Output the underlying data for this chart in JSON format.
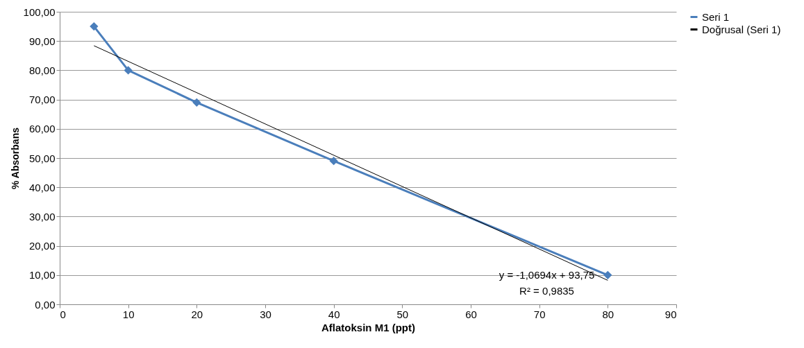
{
  "chart_data": {
    "type": "line",
    "xlabel": "Aflatoksin M1 (ppt)",
    "ylabel": "% Absorbans",
    "series": [
      {
        "name": "Seri 1",
        "color": "#4a7ebb",
        "x": [
          5,
          10,
          20,
          40,
          80
        ],
        "values": [
          95,
          80,
          69,
          49,
          10
        ]
      },
      {
        "name": "Doğrusal (Seri 1)",
        "color": "#000000",
        "type": "line",
        "marker": "none",
        "x": [
          5,
          80
        ],
        "values": [
          88.4,
          8.2
        ]
      }
    ],
    "xlim": [
      0,
      90
    ],
    "xticks": [
      0,
      10,
      20,
      30,
      40,
      50,
      60,
      70,
      80,
      90
    ],
    "ylim": [
      0,
      100
    ],
    "yticks": [
      {
        "value": 0,
        "label": "0,00"
      },
      {
        "value": 10,
        "label": "10,00"
      },
      {
        "value": 20,
        "label": "20,00"
      },
      {
        "value": 30,
        "label": "30,00"
      },
      {
        "value": 40,
        "label": "40,00"
      },
      {
        "value": 50,
        "label": "50,00"
      },
      {
        "value": 60,
        "label": "60,00"
      },
      {
        "value": 70,
        "label": "70,00"
      },
      {
        "value": 80,
        "label": "80,00"
      },
      {
        "value": 90,
        "label": "90,00"
      },
      {
        "value": 100,
        "label": "100,00"
      }
    ],
    "annotations": [
      "y = -1,0694x + 93,75",
      "R² = 0,9835"
    ],
    "grid": "y",
    "legend": "right",
    "marker": "diamond",
    "line_style": "solid"
  }
}
